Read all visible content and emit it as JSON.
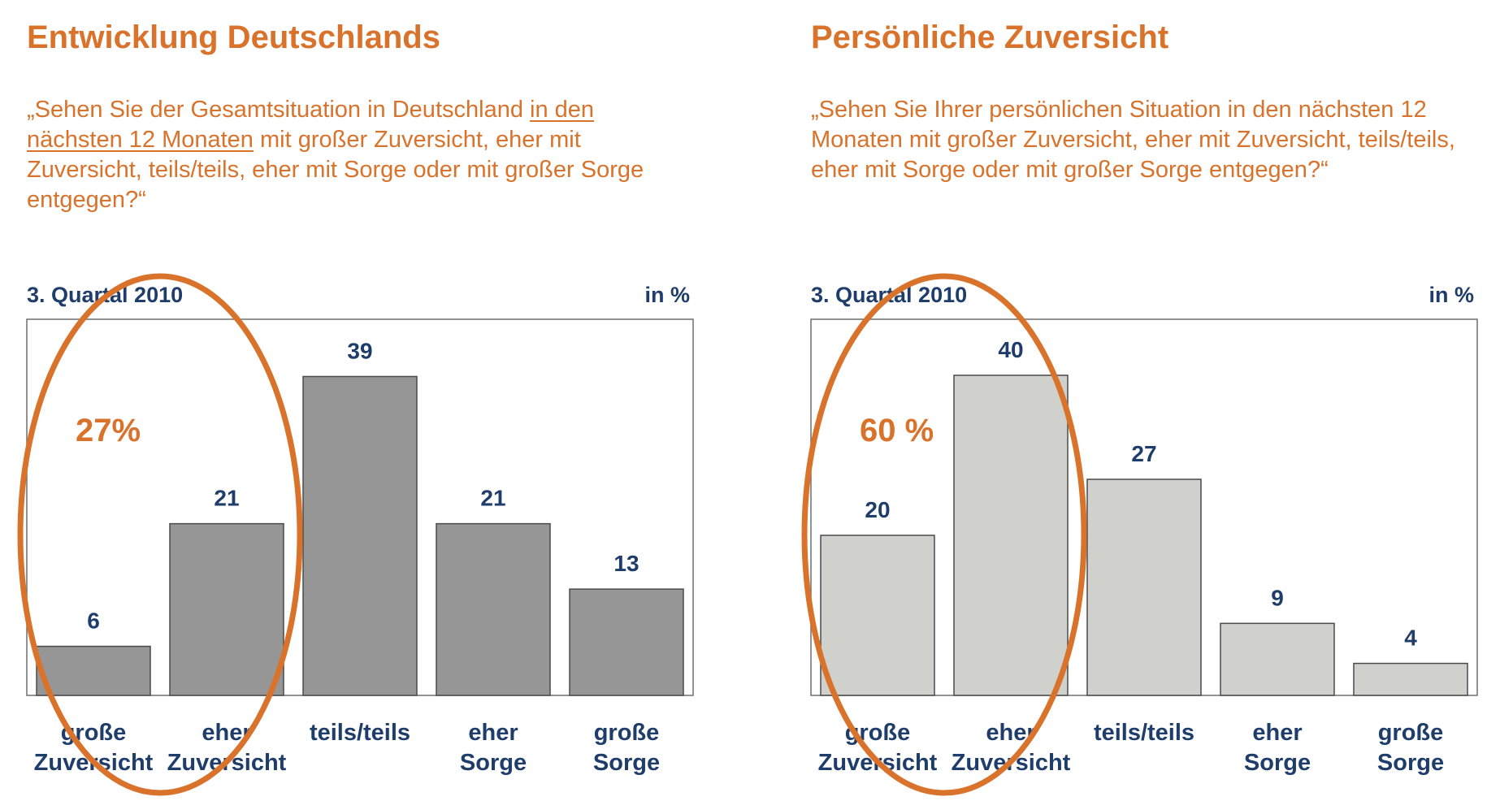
{
  "chart_data": [
    {
      "type": "bar",
      "title": "Entwicklung Deutschlands",
      "question_parts": [
        "„Sehen Sie der Gesamtsituation in Deutschland ",
        "in den nächsten 12 Monaten",
        " mit großer Zuversicht, eher mit Zuversicht, teils/teils, eher mit Sorge oder mit großer Sorge entgegen?“"
      ],
      "period": "3. Quartal 2010",
      "unit": "in %",
      "categories": [
        [
          "große",
          "Zuversicht"
        ],
        [
          "eher",
          "Zuversicht"
        ],
        [
          "teils/teils"
        ],
        [
          "eher",
          "Sorge"
        ],
        [
          "große",
          "Sorge"
        ]
      ],
      "values": [
        6,
        21,
        39,
        21,
        13
      ],
      "highlight": {
        "label": "27%",
        "categories": [
          0,
          1
        ]
      },
      "ylim": [
        0,
        46
      ],
      "bar_color": "#969696",
      "highlight_color": "#d9722b"
    },
    {
      "type": "bar",
      "title": "Persönliche Zuversicht",
      "question_parts": [
        "„Sehen Sie Ihrer persönlichen Situation in den nächsten 12 Monaten mit großer Zuversicht, eher mit Zuversicht, teils/teils, eher mit Sorge oder mit großer Sorge entgegen?“",
        "",
        ""
      ],
      "period": "3. Quartal 2010",
      "unit": "in %",
      "categories": [
        [
          "große",
          "Zuversicht"
        ],
        [
          "eher",
          "Zuversicht"
        ],
        [
          "teils/teils"
        ],
        [
          "eher",
          "Sorge"
        ],
        [
          "große",
          "Sorge"
        ]
      ],
      "values": [
        20,
        40,
        27,
        9,
        4
      ],
      "highlight": {
        "label": "60 %",
        "categories": [
          0,
          1
        ]
      },
      "ylim": [
        0,
        47
      ],
      "bar_color": "#d0d0cc",
      "highlight_color": "#d9722b"
    }
  ]
}
